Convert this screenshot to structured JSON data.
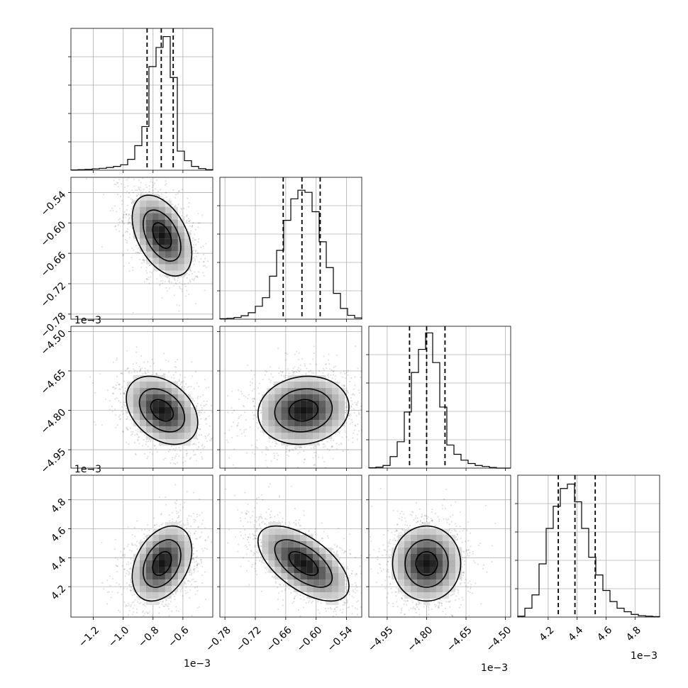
{
  "chart_data": {
    "type": "corner",
    "grid": true,
    "parameters": [
      {
        "range": [
          -1.35,
          -0.4
        ],
        "ticks": [
          -1.2,
          -1.0,
          -0.8,
          -0.6
        ],
        "tick_labels": [
          "−1.2",
          "−1.0",
          "−0.8",
          "−0.6"
        ],
        "offset_label": "1e−3",
        "quantiles": [
          -0.84,
          -0.745,
          -0.665
        ],
        "hist_edges": [
          -1.35,
          -1.3025,
          -1.255,
          -1.2075,
          -1.16,
          -1.1125,
          -1.065,
          -1.0175,
          -0.97,
          -0.9225,
          -0.875,
          -0.8275,
          -0.78,
          -0.7325,
          -0.685,
          -0.6375,
          -0.59,
          -0.5425,
          -0.495,
          -0.4475,
          -0.4
        ],
        "hist_counts": [
          0.01,
          0.02,
          0.03,
          0.05,
          0.07,
          0.1,
          0.14,
          0.2,
          0.4,
          0.9,
          1.6,
          3.8,
          4.5,
          4.9,
          3.4,
          0.7,
          0.35,
          0.14,
          0.06,
          0.02
        ],
        "hist_ylim": [
          0,
          5.2
        ]
      },
      {
        "range": [
          -0.79,
          -0.51
        ],
        "ticks": [
          -0.78,
          -0.72,
          -0.66,
          -0.6,
          -0.54
        ],
        "tick_labels": [
          "−0.78",
          "−0.72",
          "−0.66",
          "−0.60",
          "−0.54"
        ],
        "offset_label": "1e−3",
        "quantiles": [
          -0.665,
          -0.628,
          -0.592
        ],
        "hist_edges": [
          -0.79,
          -0.776,
          -0.762,
          -0.748,
          -0.734,
          -0.72,
          -0.706,
          -0.692,
          -0.678,
          -0.664,
          -0.65,
          -0.636,
          -0.622,
          -0.608,
          -0.594,
          -0.58,
          -0.566,
          -0.552,
          -0.538,
          -0.524,
          -0.51
        ],
        "hist_counts": [
          0.01,
          0.02,
          0.04,
          0.08,
          0.15,
          0.3,
          0.5,
          1.0,
          1.6,
          2.3,
          2.8,
          3.0,
          2.95,
          2.5,
          1.8,
          1.2,
          0.6,
          0.25,
          0.09,
          0.03
        ],
        "hist_ylim": [
          0,
          3.3
        ]
      },
      {
        "range": [
          -5.02,
          -4.48
        ],
        "ticks": [
          -4.95,
          -4.8,
          -4.65,
          -4.5
        ],
        "tick_labels": [
          "−4.95",
          "−4.80",
          "−4.65",
          "−4.50"
        ],
        "offset_label": "1e−3",
        "quantiles": [
          -4.865,
          -4.8,
          -4.73
        ],
        "hist_edges": [
          -5.02,
          -4.993,
          -4.966,
          -4.939,
          -4.912,
          -4.885,
          -4.858,
          -4.831,
          -4.804,
          -4.777,
          -4.75,
          -4.723,
          -4.696,
          -4.669,
          -4.642,
          -4.615,
          -4.588,
          -4.561,
          -4.534,
          -4.507,
          -4.48
        ],
        "hist_counts": [
          0.01,
          0.03,
          0.08,
          0.35,
          0.8,
          1.7,
          2.9,
          3.6,
          4.1,
          3.2,
          1.85,
          0.7,
          0.42,
          0.24,
          0.14,
          0.08,
          0.05,
          0.02,
          0.0,
          0.0
        ],
        "hist_ylim": [
          0,
          4.3
        ]
      },
      {
        "range": [
          3.99,
          4.97
        ],
        "ticks": [
          4.2,
          4.4,
          4.6,
          4.8
        ],
        "tick_labels": [
          "4.2",
          "4.4",
          "4.6",
          "4.8"
        ],
        "offset_label": "1e−3",
        "quantiles": [
          4.27,
          4.385,
          4.525
        ],
        "hist_edges": [
          3.99,
          4.039,
          4.088,
          4.137,
          4.186,
          4.235,
          4.284,
          4.333,
          4.382,
          4.431,
          4.48,
          4.529,
          4.578,
          4.627,
          4.676,
          4.725,
          4.774,
          4.823,
          4.872,
          4.921,
          4.97
        ],
        "hist_counts": [
          0.02,
          0.2,
          0.5,
          1.2,
          2.0,
          2.5,
          2.9,
          3.0,
          2.6,
          2.0,
          1.35,
          0.95,
          0.6,
          0.35,
          0.2,
          0.12,
          0.06,
          0.03,
          0.02,
          0.01
        ],
        "hist_ylim": [
          0,
          3.2
        ]
      }
    ],
    "pairs": [
      {
        "x": 0,
        "y": 1,
        "mean": [
          -0.74,
          -0.625
        ],
        "sd": [
          0.1,
          0.04
        ],
        "rho": -0.45
      },
      {
        "x": 0,
        "y": 2,
        "mean": [
          -0.74,
          -4.8
        ],
        "sd": [
          0.12,
          0.065
        ],
        "rho": -0.35
      },
      {
        "x": 1,
        "y": 2,
        "mean": [
          -0.625,
          -4.8
        ],
        "sd": [
          0.045,
          0.065
        ],
        "rho": 0.1
      },
      {
        "x": 0,
        "y": 3,
        "mean": [
          -0.74,
          4.36
        ],
        "sd": [
          0.1,
          0.13
        ],
        "rho": 0.35
      },
      {
        "x": 1,
        "y": 3,
        "mean": [
          -0.625,
          4.36
        ],
        "sd": [
          0.045,
          0.13
        ],
        "rho": -0.6
      },
      {
        "x": 2,
        "y": 3,
        "mean": [
          -4.8,
          4.36
        ],
        "sd": [
          0.065,
          0.13
        ],
        "rho": 0.0
      }
    ]
  }
}
